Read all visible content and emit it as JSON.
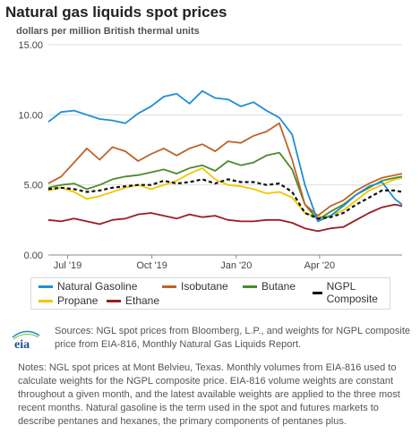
{
  "title": "Natural gas liquids spot prices",
  "subtitle": "dollars per million British thermal units",
  "sources": "Sources: NGL spot prices from Bloomberg, L.P., and weights for NGPL composite price from EIA-816, Monthly Natural Gas Liquids Report.",
  "notes": "Notes: NGL spot prices at Mont Belvieu, Texas. Monthly volumes from EIA-816 used to calculate weights for the NGPL composite price. EIA-816 volume weights are constant throughout a given month, and the latest available weights are applied to the three most recent months. Natural gasoline is the term used in the spot and futures markets to describe pentanes and hexanes, the primary components of pentanes plus.",
  "logo_text": "eia",
  "chart_data": {
    "type": "line",
    "title": "Natural gas liquids spot prices",
    "ylabel": "dollars per million British thermal units",
    "ylim": [
      0,
      15
    ],
    "yticks": [
      "0.00",
      "5.00",
      "10.00",
      "15.00"
    ],
    "xlim": [
      "2019-06-10",
      "2020-06-30"
    ],
    "xticks": [
      {
        "date": "2019-07-01",
        "label": "Jul '19"
      },
      {
        "date": "2019-10-01",
        "label": "Oct '19"
      },
      {
        "date": "2020-01-01",
        "label": "Jan '20"
      },
      {
        "date": "2020-04-01",
        "label": "Apr '20"
      }
    ],
    "grid": true,
    "legend_position": "bottom",
    "x": [
      "2019-06-10",
      "2019-06-24",
      "2019-07-08",
      "2019-07-22",
      "2019-08-05",
      "2019-08-19",
      "2019-09-02",
      "2019-09-16",
      "2019-09-30",
      "2019-10-14",
      "2019-10-28",
      "2019-11-11",
      "2019-11-25",
      "2019-12-09",
      "2019-12-23",
      "2020-01-06",
      "2020-01-20",
      "2020-02-03",
      "2020-02-17",
      "2020-03-02",
      "2020-03-16",
      "2020-03-30",
      "2020-04-13",
      "2020-04-27",
      "2020-05-11",
      "2020-05-25",
      "2020-06-08",
      "2020-06-22",
      "2020-06-30"
    ],
    "series": [
      {
        "name": "Natural Gasoline",
        "color": "#1f8dd6",
        "values": [
          9.5,
          10.2,
          10.3,
          10.0,
          9.7,
          9.6,
          9.4,
          10.1,
          10.6,
          11.3,
          11.5,
          10.8,
          11.7,
          11.2,
          11.1,
          10.6,
          10.9,
          10.3,
          9.8,
          8.6,
          5.0,
          2.4,
          2.8,
          3.5,
          4.3,
          4.9,
          5.2,
          4.0,
          3.6
        ]
      },
      {
        "name": "Isobutane",
        "color": "#c0622b",
        "values": [
          5.1,
          5.6,
          6.6,
          7.6,
          6.8,
          7.7,
          7.4,
          6.7,
          7.2,
          7.6,
          7.1,
          7.6,
          7.9,
          7.4,
          8.1,
          8.0,
          8.5,
          8.8,
          9.4,
          6.8,
          3.6,
          2.8,
          3.5,
          3.9,
          4.6,
          5.1,
          5.5,
          5.7,
          5.8
        ]
      },
      {
        "name": "Butane",
        "color": "#4c8b2b",
        "values": [
          4.8,
          5.0,
          5.1,
          4.7,
          5.0,
          5.4,
          5.6,
          5.7,
          5.9,
          6.1,
          5.8,
          6.2,
          6.4,
          6.0,
          6.7,
          6.4,
          6.6,
          7.1,
          7.3,
          6.1,
          3.6,
          2.5,
          3.1,
          3.6,
          4.3,
          4.8,
          5.3,
          5.5,
          5.6
        ]
      },
      {
        "name": "NGPL Composite",
        "color": "#111111",
        "dashed": true,
        "values": [
          4.7,
          4.8,
          4.7,
          4.5,
          4.6,
          4.8,
          4.9,
          5.0,
          5.0,
          5.3,
          5.1,
          5.2,
          5.4,
          5.1,
          5.4,
          5.2,
          5.2,
          5.0,
          5.1,
          4.5,
          3.0,
          2.6,
          2.7,
          3.0,
          3.6,
          4.1,
          4.6,
          4.6,
          4.5
        ]
      },
      {
        "name": "Propane",
        "color": "#f2c500",
        "values": [
          4.6,
          4.8,
          4.5,
          4.0,
          4.2,
          4.5,
          4.8,
          5.0,
          4.7,
          5.0,
          5.3,
          5.8,
          6.2,
          5.4,
          5.0,
          4.9,
          4.7,
          4.4,
          4.5,
          4.1,
          3.0,
          2.7,
          2.8,
          3.2,
          3.9,
          4.6,
          5.0,
          5.4,
          5.5
        ]
      },
      {
        "name": "Ethane",
        "color": "#9b1c22",
        "values": [
          2.5,
          2.4,
          2.6,
          2.4,
          2.2,
          2.5,
          2.6,
          2.9,
          3.0,
          2.8,
          2.6,
          2.9,
          2.7,
          2.8,
          2.5,
          2.4,
          2.4,
          2.5,
          2.5,
          2.3,
          1.9,
          1.7,
          1.9,
          2.0,
          2.5,
          3.0,
          3.4,
          3.6,
          3.5
        ]
      }
    ]
  }
}
